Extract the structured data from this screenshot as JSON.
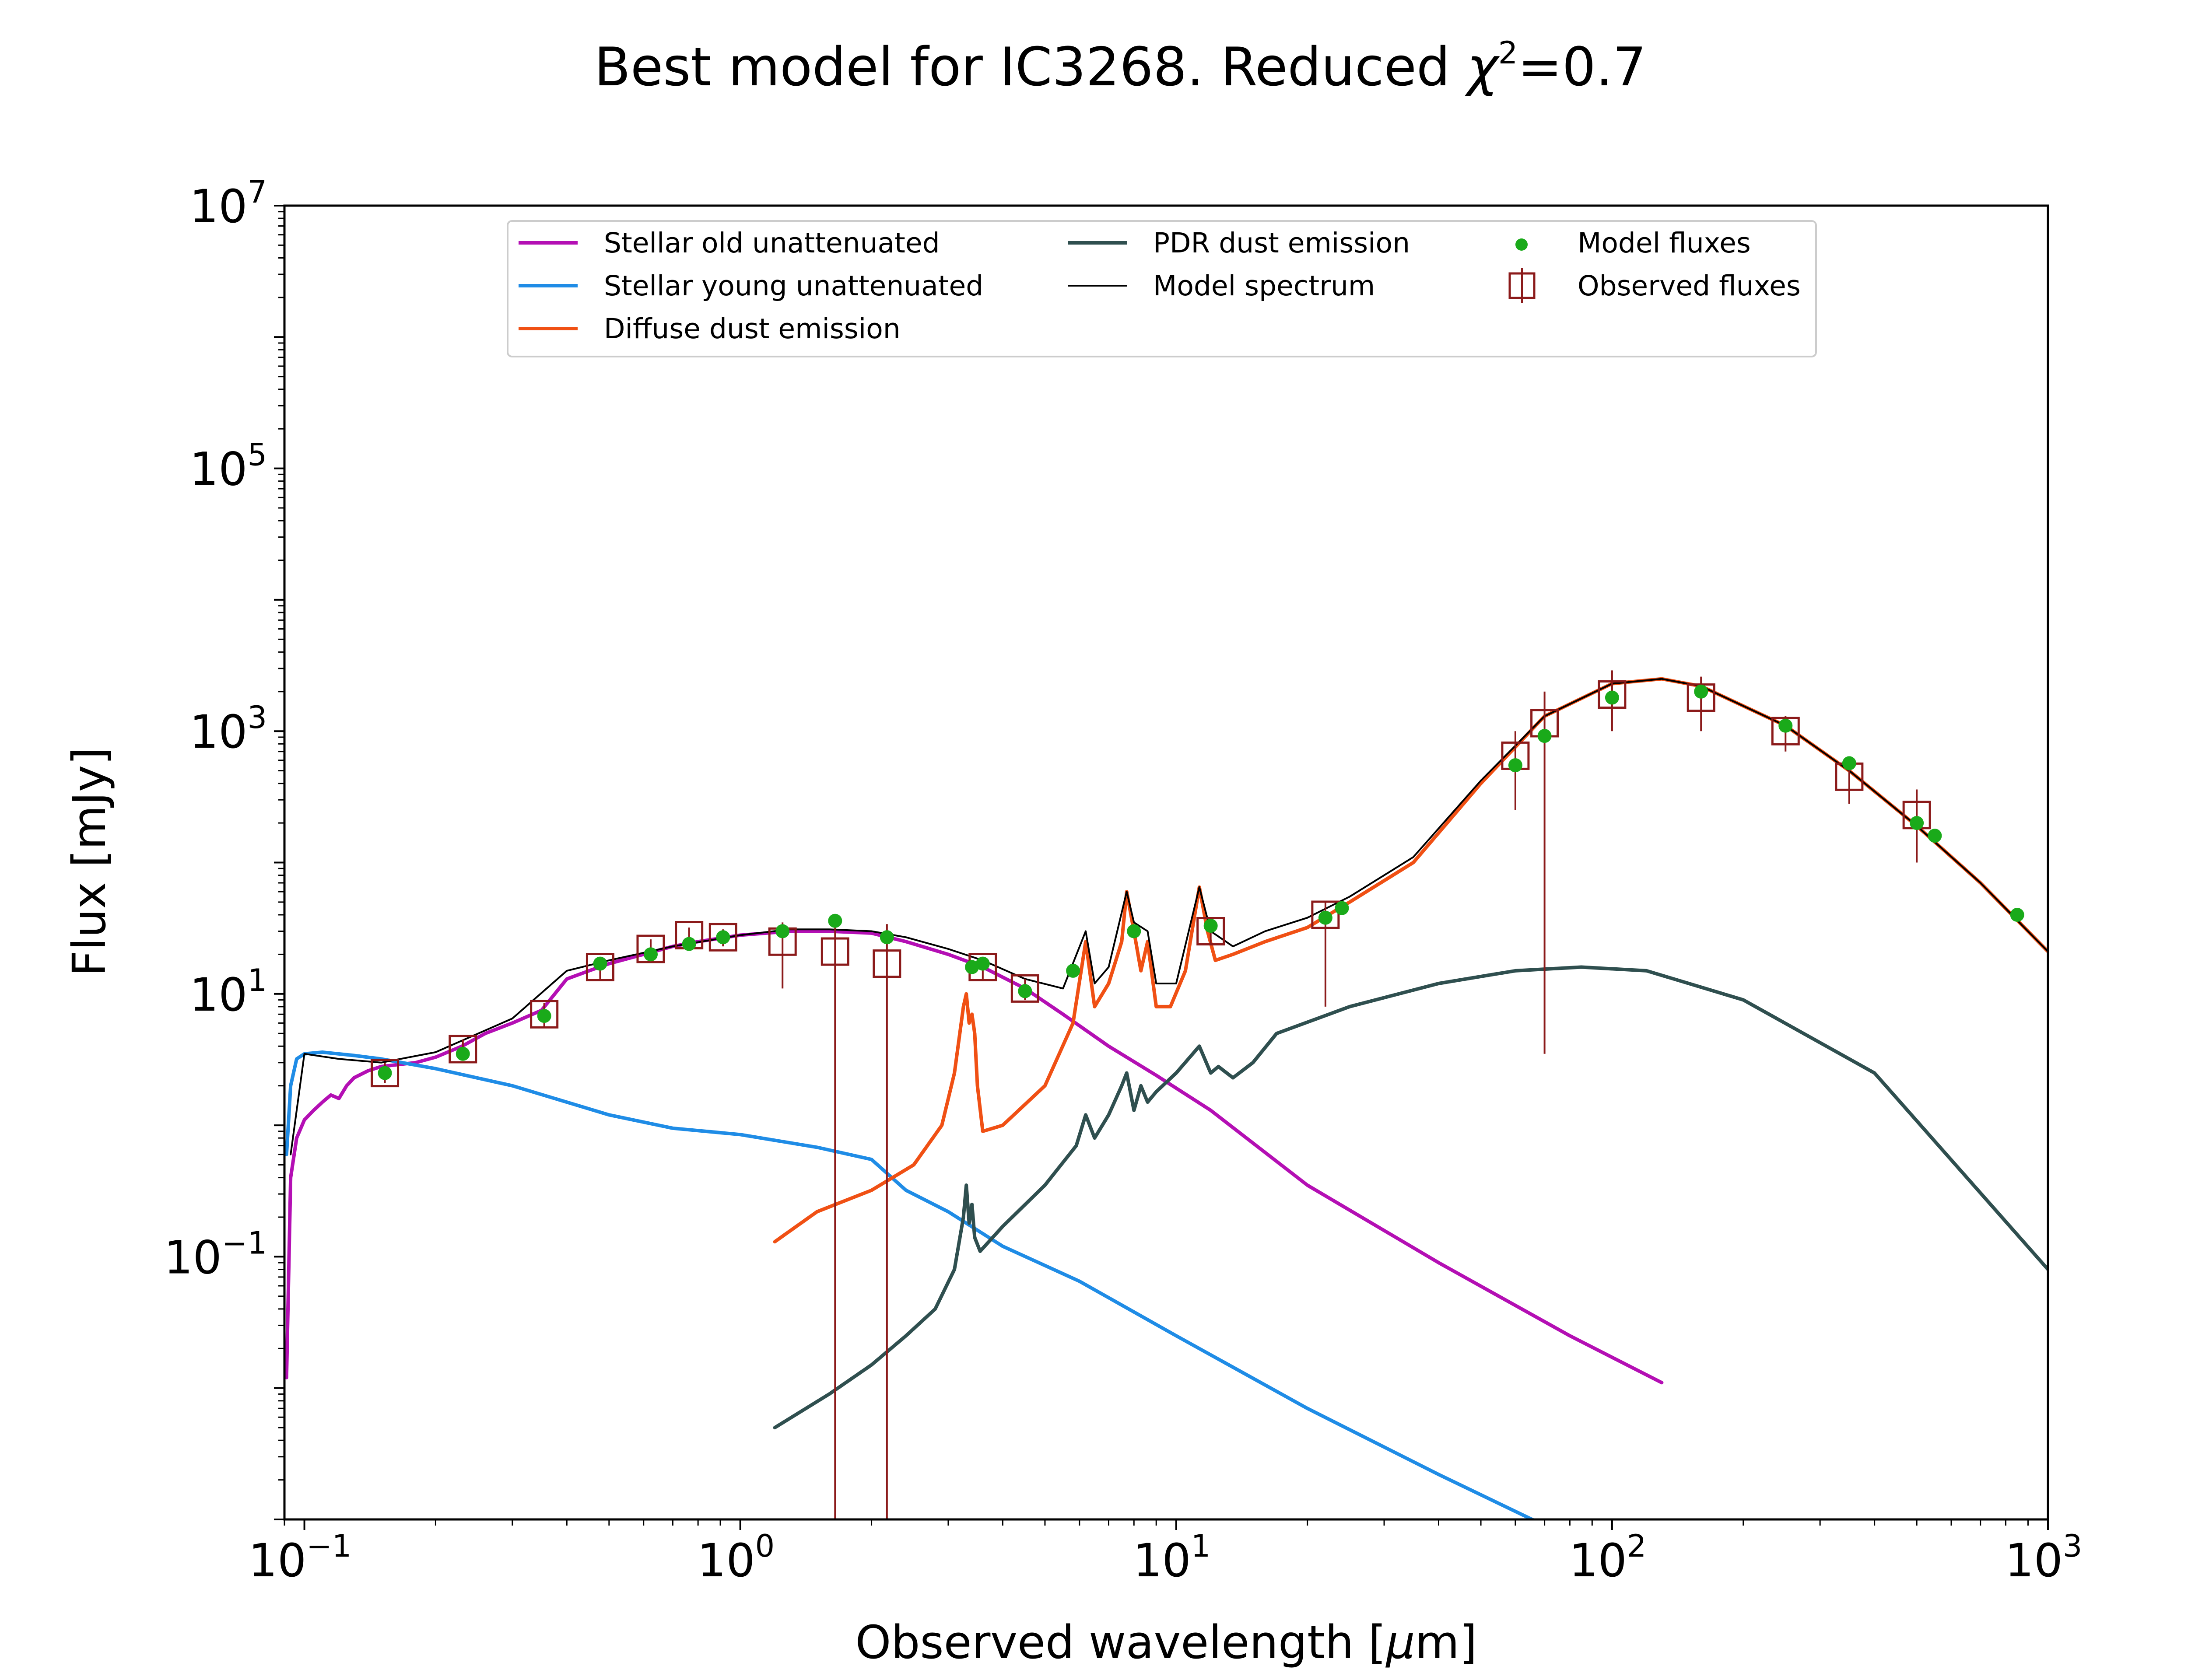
{
  "chart_data": {
    "type": "line",
    "title_main": "Best model for IC3268. Reduced ",
    "title_chi": "χ",
    "title_exp": "2",
    "title_value": "=0.7",
    "xlabel_main": "Observed wavelength [",
    "xlabel_mu": "μ",
    "xlabel_end": "m]",
    "ylabel": "Flux [mJy]",
    "xscale": "log",
    "yscale": "log",
    "xlim": [
      0.09,
      1000
    ],
    "ylim": [
      0.001,
      10000000
    ],
    "legend_position": "upper center",
    "x_ticks": [
      {
        "value": 0.1,
        "base": "10",
        "exp": "−1"
      },
      {
        "value": 1,
        "base": "10",
        "exp": "0"
      },
      {
        "value": 10,
        "base": "10",
        "exp": "1"
      },
      {
        "value": 100,
        "base": "10",
        "exp": "2"
      },
      {
        "value": 1000,
        "base": "10",
        "exp": "3"
      }
    ],
    "y_ticks": [
      {
        "value": 0.1,
        "base": "10",
        "exp": "−1"
      },
      {
        "value": 10,
        "base": "10",
        "exp": "1"
      },
      {
        "value": 1000,
        "base": "10",
        "exp": "3"
      },
      {
        "value": 100000,
        "base": "10",
        "exp": "5"
      },
      {
        "value": 10000000,
        "base": "10",
        "exp": "7"
      }
    ],
    "series": [
      {
        "name": "Stellar old unattenuated",
        "color": "#b40fb4",
        "x": [
          0.091,
          0.093,
          0.096,
          0.1,
          0.105,
          0.11,
          0.115,
          0.12,
          0.125,
          0.13,
          0.14,
          0.15,
          0.18,
          0.2,
          0.23,
          0.26,
          0.3,
          0.35,
          0.4,
          0.45,
          0.5,
          0.6,
          0.7,
          0.8,
          1.0,
          1.3,
          1.6,
          2.0,
          2.4,
          3.0,
          3.6,
          4.5,
          5.5,
          7.0,
          9.0,
          12,
          20,
          40,
          80,
          130
        ],
        "y": [
          0.012,
          0.4,
          0.8,
          1.1,
          1.3,
          1.5,
          1.7,
          1.6,
          2.0,
          2.3,
          2.6,
          2.8,
          3.0,
          3.3,
          4.0,
          5.0,
          6.0,
          7.5,
          13,
          15,
          17,
          20,
          23,
          25,
          28,
          30,
          30,
          29,
          25,
          20,
          16,
          11,
          7.0,
          4.0,
          2.4,
          1.3,
          0.35,
          0.09,
          0.025,
          0.011
        ]
      },
      {
        "name": "Stellar young unattenuated",
        "color": "#1f8ce6",
        "x": [
          0.091,
          0.093,
          0.096,
          0.1,
          0.11,
          0.13,
          0.15,
          0.2,
          0.3,
          0.4,
          0.5,
          0.7,
          1.0,
          1.5,
          2.0,
          2.4,
          3.0,
          4.0,
          6.0,
          10,
          20,
          40,
          70
        ],
        "y": [
          0.6,
          2.0,
          3.2,
          3.5,
          3.6,
          3.4,
          3.2,
          2.7,
          2.0,
          1.5,
          1.2,
          0.95,
          0.85,
          0.68,
          0.55,
          0.32,
          0.22,
          0.12,
          0.065,
          0.025,
          0.007,
          0.0022,
          0.0009
        ]
      },
      {
        "name": "Diffuse dust emission",
        "color": "#f05014",
        "x": [
          1.2,
          1.5,
          2.0,
          2.5,
          2.9,
          3.1,
          3.25,
          3.3,
          3.35,
          3.4,
          3.45,
          3.5,
          3.6,
          4.0,
          5.0,
          5.8,
          6.2,
          6.5,
          7.0,
          7.5,
          7.7,
          8.0,
          8.3,
          8.6,
          9.0,
          9.7,
          10.5,
          11.3,
          11.8,
          12.3,
          13.5,
          16,
          20,
          25,
          35,
          50,
          70,
          100,
          130,
          160,
          250,
          350,
          500,
          700,
          1000
        ],
        "y": [
          0.13,
          0.22,
          0.32,
          0.5,
          1.0,
          2.5,
          8.0,
          10,
          6.0,
          7.0,
          5.0,
          2.0,
          0.9,
          1.0,
          2.0,
          6.0,
          25,
          8.0,
          12,
          25,
          60,
          30,
          15,
          25,
          8.0,
          8.0,
          15,
          65,
          30,
          18,
          20,
          25,
          32,
          50,
          100,
          400,
          1300,
          2300,
          2500,
          2200,
          1100,
          500,
          190,
          70,
          21
        ]
      },
      {
        "name": "PDR dust emission",
        "color": "#2f4f4f",
        "x": [
          1.2,
          1.6,
          2.0,
          2.4,
          2.8,
          3.1,
          3.25,
          3.3,
          3.35,
          3.4,
          3.45,
          3.55,
          4.0,
          5.0,
          5.9,
          6.2,
          6.5,
          7.0,
          7.5,
          7.7,
          8.0,
          8.3,
          8.6,
          9.0,
          10,
          11.3,
          12,
          12.5,
          13.5,
          15,
          17,
          25,
          40,
          60,
          85,
          120,
          200,
          400,
          1000
        ],
        "y": [
          0.005,
          0.009,
          0.015,
          0.025,
          0.04,
          0.08,
          0.2,
          0.35,
          0.18,
          0.25,
          0.14,
          0.11,
          0.17,
          0.35,
          0.7,
          1.2,
          0.8,
          1.2,
          2.0,
          2.5,
          1.3,
          2.0,
          1.5,
          1.8,
          2.5,
          4.0,
          2.5,
          2.8,
          2.3,
          3.0,
          5.0,
          8.0,
          12,
          15,
          16,
          15,
          9.0,
          2.5,
          0.08
        ]
      },
      {
        "name": "Model spectrum",
        "color": "#000000",
        "x": [
          0.093,
          0.1,
          0.12,
          0.15,
          0.2,
          0.3,
          0.4,
          0.5,
          0.7,
          1.0,
          1.3,
          1.6,
          2.0,
          2.4,
          3.0,
          3.6,
          4.5,
          5.5,
          6.2,
          6.5,
          7.0,
          7.7,
          8.0,
          8.6,
          9.0,
          10,
          11.3,
          12,
          13.5,
          16,
          20,
          25,
          35,
          50,
          70,
          100,
          130,
          160,
          250,
          350,
          500,
          700,
          1000
        ],
        "y": [
          0.6,
          3.5,
          3.2,
          3.0,
          3.6,
          6.5,
          15,
          18,
          23,
          28,
          31,
          31,
          30,
          27,
          22,
          18,
          13,
          11,
          30,
          12,
          16,
          60,
          35,
          30,
          12,
          12,
          65,
          30,
          23,
          30,
          38,
          55,
          110,
          420,
          1300,
          2300,
          2500,
          2200,
          1100,
          500,
          190,
          70,
          21
        ]
      },
      {
        "name": "Model fluxes",
        "color": "#1aaa1a",
        "x": [
          0.153,
          0.231,
          0.355,
          0.477,
          0.623,
          0.763,
          0.913,
          1.25,
          1.65,
          2.17,
          3.4,
          3.6,
          4.5,
          5.8,
          8.0,
          12,
          22,
          24,
          60,
          70,
          100,
          160,
          250,
          350,
          500,
          550,
          850
        ],
        "y": [
          2.5,
          3.5,
          6.8,
          17,
          20,
          24,
          27,
          30,
          36,
          27,
          16,
          17,
          10.5,
          15,
          30,
          33,
          38,
          45,
          550,
          920,
          1800,
          2000,
          1100,
          570,
          200,
          160,
          40
        ]
      },
      {
        "name": "Observed fluxes",
        "color": "#8b1a1a",
        "x": [
          0.153,
          0.231,
          0.355,
          0.477,
          0.623,
          0.763,
          0.913,
          1.25,
          1.65,
          2.17,
          3.6,
          4.5,
          12,
          22,
          60,
          70,
          100,
          160,
          250,
          350,
          500
        ],
        "y": [
          2.5,
          3.8,
          7.0,
          16,
          22,
          28,
          27,
          25,
          21,
          17,
          16,
          11,
          30,
          40,
          650,
          1150,
          1900,
          1800,
          1000,
          450,
          230
        ],
        "yerr_low": [
          2.1,
          3.2,
          5.5,
          13,
          18,
          24,
          23,
          11,
          0.001,
          0.001,
          13,
          9,
          24,
          8,
          250,
          3.5,
          1000,
          1000,
          700,
          280,
          100
        ],
        "yerr_high": [
          3.0,
          4.5,
          8.5,
          19,
          26,
          32,
          31,
          35,
          40,
          34,
          19,
          13,
          36,
          50,
          1000,
          2000,
          2900,
          2600,
          1300,
          620,
          360
        ]
      }
    ]
  }
}
